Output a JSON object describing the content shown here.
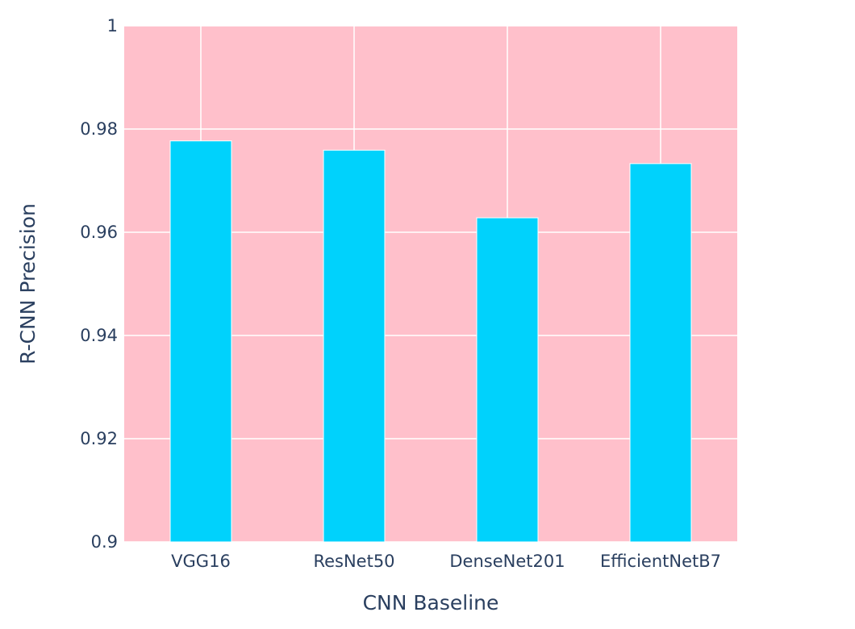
{
  "chart_data": {
    "type": "bar",
    "categories": [
      "VGG16",
      "ResNet50",
      "DenseNet201",
      "EfficientNetB7"
    ],
    "values": [
      0.9777,
      0.9759,
      0.9628,
      0.9733
    ],
    "title": "",
    "xlabel": "CNN Baseline",
    "ylabel": "R-CNN Precision",
    "ylim": [
      0.9,
      1.0
    ],
    "yticks": [
      0.9,
      0.92,
      0.94,
      0.96,
      0.98,
      1
    ],
    "ytick_labels": [
      "0.9",
      "0.92",
      "0.94",
      "0.96",
      "0.98",
      "1"
    ],
    "grid": true,
    "plot_background": "#ffc0cb",
    "bar_color": "#00d2fc",
    "bar_outline": "#ffffff",
    "grid_color": "#ffffff",
    "text_color": "#2a3f5f"
  }
}
